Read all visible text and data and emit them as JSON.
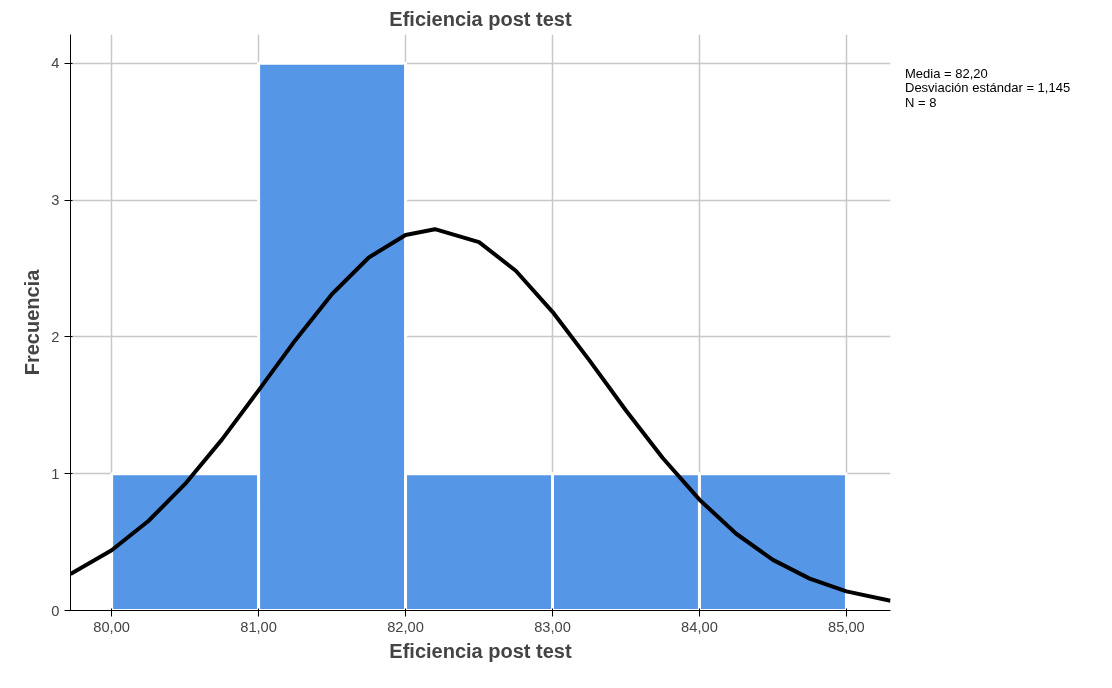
{
  "chart_data": {
    "type": "histogram",
    "title": "Eficiencia post test",
    "xlabel": "Eficiencia post test",
    "ylabel": "Frecuencia",
    "bins": [
      80,
      81,
      82,
      83,
      84,
      85
    ],
    "values": [
      1,
      4,
      1,
      1,
      1
    ],
    "color": "#5596e6",
    "series": [
      {
        "type": "line",
        "color": "#000000",
        "x": [
          79.72,
          80,
          80.25,
          80.5,
          80.75,
          81,
          81.25,
          81.5,
          81.75,
          82,
          82.2,
          82.5,
          82.75,
          83,
          83.25,
          83.5,
          83.75,
          84,
          84.25,
          84.5,
          84.75,
          85,
          85.3
        ],
        "values": [
          0.267,
          0.44,
          0.654,
          0.925,
          1.249,
          1.609,
          1.976,
          2.313,
          2.58,
          2.745,
          2.787,
          2.693,
          2.483,
          2.183,
          1.83,
          1.462,
          1.115,
          0.81,
          0.561,
          0.37,
          0.233,
          0.14,
          0.071
        ]
      }
    ],
    "xlim": [
      79.72,
      85.3
    ],
    "ylim": [
      0,
      4.21
    ],
    "xticks": [
      {
        "value": 80,
        "label": "80,00"
      },
      {
        "value": 81,
        "label": "81,00"
      },
      {
        "value": 82,
        "label": "82,00"
      },
      {
        "value": 83,
        "label": "83,00"
      },
      {
        "value": 84,
        "label": "84,00"
      },
      {
        "value": 85,
        "label": "85,00"
      }
    ],
    "yticks": [
      0,
      1,
      2,
      3,
      4
    ],
    "grid": true,
    "annotations": [
      "Media = 82,20",
      "Desviación estándar = 1,145",
      "N = 8"
    ]
  }
}
